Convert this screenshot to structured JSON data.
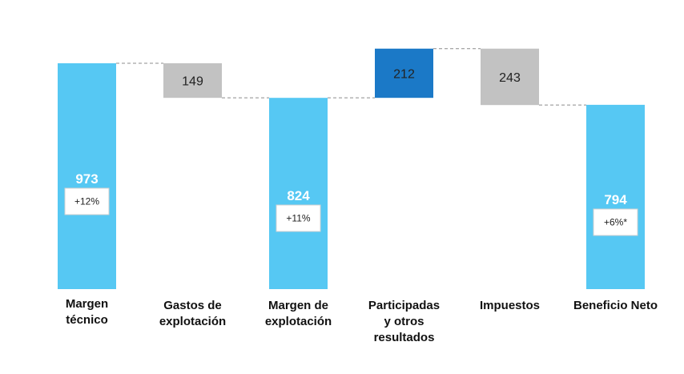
{
  "chart_data": {
    "type": "bar",
    "subtype": "waterfall",
    "grid": false,
    "legend": "none",
    "categories": [
      "Margen técnico",
      "Gastos de explotación",
      "Margen de explotación",
      "Participadas y otros resultados",
      "Impuestos",
      "Beneficio Neto"
    ],
    "category_lines": [
      [
        "Margen",
        "técnico"
      ],
      [
        "Gastos de",
        "explotación"
      ],
      [
        "Margen de",
        "explotación"
      ],
      [
        "Participadas",
        "y otros",
        "resultados"
      ],
      [
        "Impuestos"
      ],
      [
        "Beneficio Neto"
      ]
    ],
    "values": [
      973,
      149,
      824,
      212,
      243,
      794
    ],
    "bar_kind": [
      "total",
      "decrease",
      "total",
      "increase",
      "decrease",
      "total"
    ],
    "value_labels": [
      "973",
      "149",
      "824",
      "212",
      "243",
      "794"
    ],
    "change_labels": [
      "+12%",
      "",
      "+11%",
      "",
      "",
      "+6%*"
    ],
    "colors": {
      "total": "#56C8F3",
      "decrease": "#C2C2C2",
      "increase": "#1B79C7",
      "connector": "#8C8C8C"
    }
  }
}
